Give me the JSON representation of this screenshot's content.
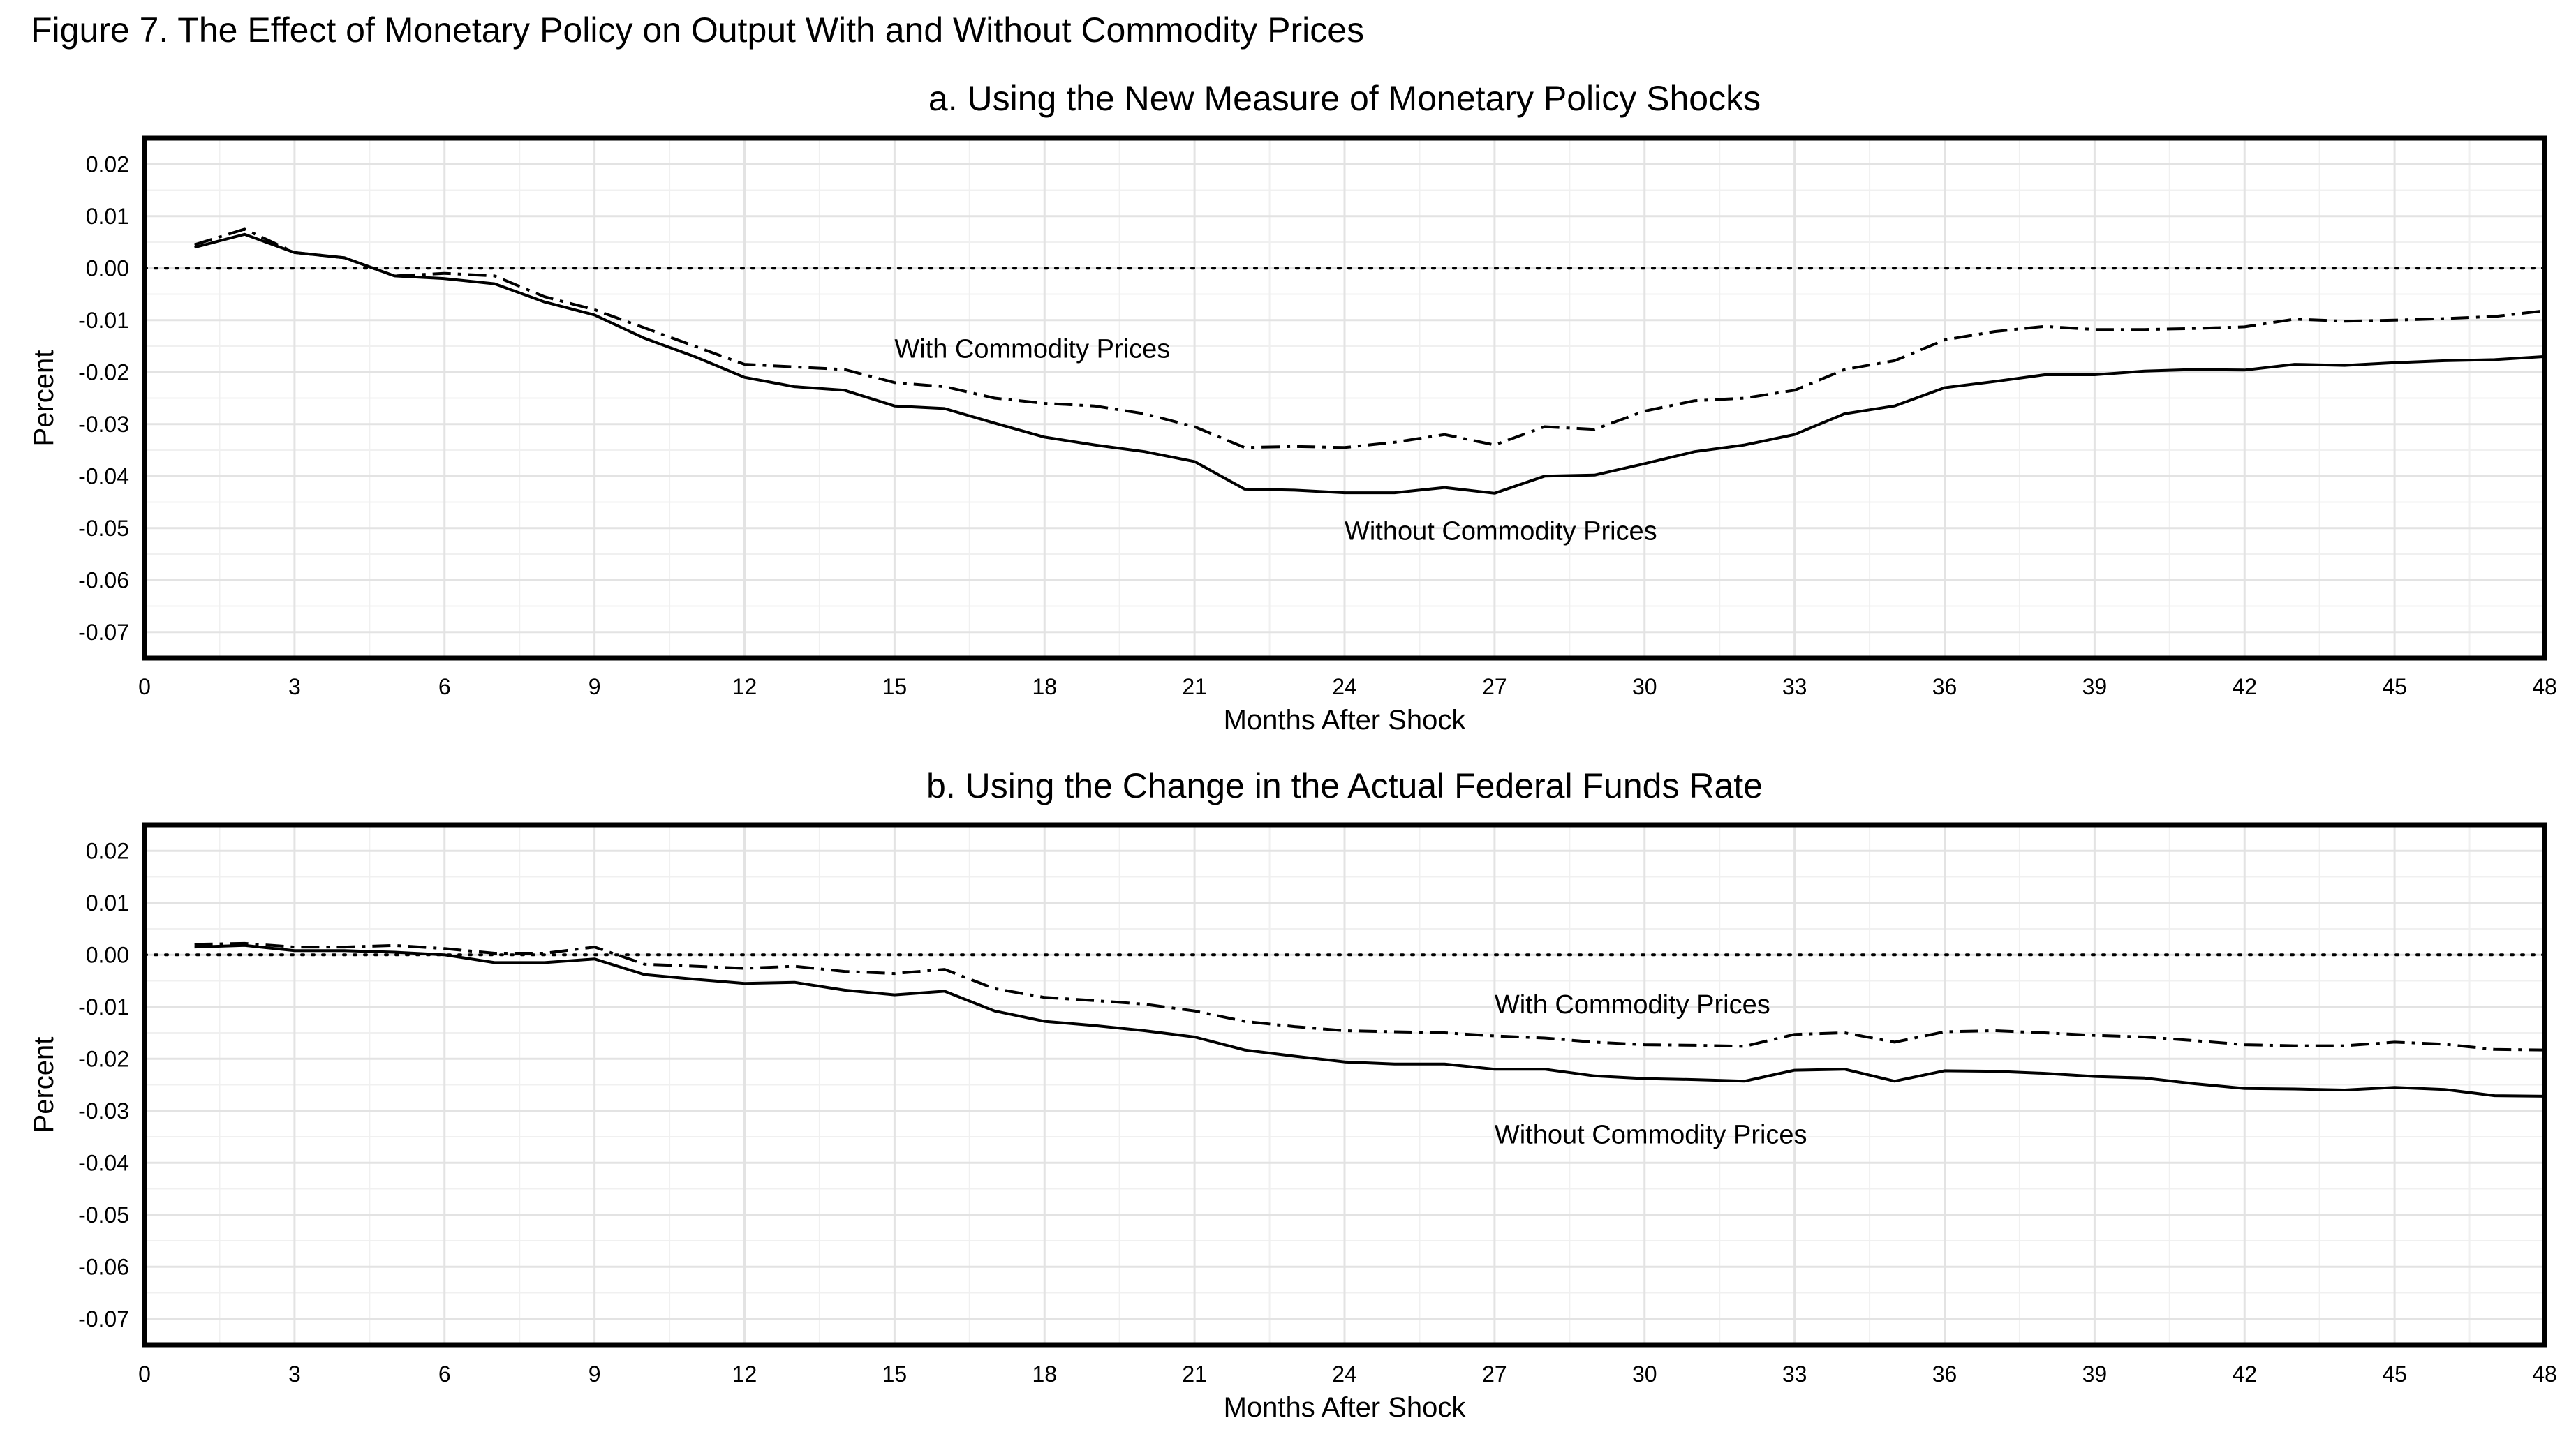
{
  "figure_title": "Figure 7. The Effect of Monetary Policy on Output With and Without Commodity Prices",
  "chart_data": [
    {
      "type": "line",
      "title": "a. Using the New Measure of Monetary Policy Shocks",
      "xlabel": "Months After Shock",
      "ylabel": "Percent",
      "xlim": [
        0,
        48
      ],
      "ylim": [
        -0.075,
        0.025
      ],
      "xticks": [
        "0",
        "3",
        "6",
        "9",
        "12",
        "15",
        "18",
        "21",
        "24",
        "27",
        "30",
        "33",
        "36",
        "39",
        "42",
        "45",
        "48"
      ],
      "yticks": [
        "0.02",
        "0.01",
        "0.00",
        "-0.01",
        "-0.02",
        "-0.03",
        "-0.04",
        "-0.05",
        "-0.06",
        "-0.07"
      ],
      "reference_line_y": 0,
      "grid": true,
      "annotations": [
        {
          "text": "With Commodity Prices",
          "x": 15,
          "y": -0.0155
        },
        {
          "text": "Without Commodity Prices",
          "x": 24,
          "y": -0.0505
        }
      ],
      "series": [
        {
          "name": "With Commodity Prices",
          "x": [
            1,
            2,
            3,
            4,
            5,
            6,
            7,
            8,
            9,
            10,
            11,
            12,
            13,
            14,
            15,
            16,
            17,
            18,
            19,
            20,
            21,
            22,
            23,
            24,
            25,
            26,
            27,
            28,
            29,
            30,
            31,
            32,
            33,
            34,
            35,
            36,
            37,
            38,
            39,
            40,
            41,
            42,
            43,
            44,
            45,
            46,
            47,
            48
          ],
          "y": [
            0.0045,
            0.0075,
            0.003,
            0.002,
            -0.0015,
            -0.001,
            -0.0015,
            -0.0055,
            -0.008,
            -0.0115,
            -0.015,
            -0.0185,
            -0.019,
            -0.0195,
            -0.022,
            -0.0228,
            -0.025,
            -0.026,
            -0.0265,
            -0.028,
            -0.0305,
            -0.0345,
            -0.0343,
            -0.0345,
            -0.0335,
            -0.032,
            -0.034,
            -0.0305,
            -0.031,
            -0.0275,
            -0.0255,
            -0.025,
            -0.0235,
            -0.0195,
            -0.0178,
            -0.0138,
            -0.0122,
            -0.0112,
            -0.0118,
            -0.0118,
            -0.0116,
            -0.0113,
            -0.0098,
            -0.0102,
            -0.01,
            -0.0097,
            -0.0093,
            -0.0082
          ]
        },
        {
          "name": "Without Commodity Prices",
          "x": [
            1,
            2,
            3,
            4,
            5,
            6,
            7,
            8,
            9,
            10,
            11,
            12,
            13,
            14,
            15,
            16,
            17,
            18,
            19,
            20,
            21,
            22,
            23,
            24,
            25,
            26,
            27,
            28,
            29,
            30,
            31,
            32,
            33,
            34,
            35,
            36,
            37,
            38,
            39,
            40,
            41,
            42,
            43,
            44,
            45,
            46,
            47,
            48
          ],
          "y": [
            0.004,
            0.0065,
            0.003,
            0.002,
            -0.0015,
            -0.002,
            -0.003,
            -0.0065,
            -0.009,
            -0.0135,
            -0.017,
            -0.021,
            -0.0228,
            -0.0235,
            -0.0265,
            -0.027,
            -0.0298,
            -0.0325,
            -0.034,
            -0.0353,
            -0.0372,
            -0.0425,
            -0.0427,
            -0.0432,
            -0.0432,
            -0.0422,
            -0.0433,
            -0.04,
            -0.0398,
            -0.0376,
            -0.0353,
            -0.034,
            -0.032,
            -0.028,
            -0.0265,
            -0.023,
            -0.0218,
            -0.0205,
            -0.0205,
            -0.0198,
            -0.0195,
            -0.0196,
            -0.0185,
            -0.0187,
            -0.0182,
            -0.0178,
            -0.0176,
            -0.017
          ]
        }
      ]
    },
    {
      "type": "line",
      "title": "b. Using the Change in the Actual Federal Funds Rate",
      "xlabel": "Months After Shock",
      "ylabel": "Percent",
      "xlim": [
        0,
        48
      ],
      "ylim": [
        -0.075,
        0.025
      ],
      "xticks": [
        "0",
        "3",
        "6",
        "9",
        "12",
        "15",
        "18",
        "21",
        "24",
        "27",
        "30",
        "33",
        "36",
        "39",
        "42",
        "45",
        "48"
      ],
      "yticks": [
        "0.02",
        "0.01",
        "0.00",
        "-0.01",
        "-0.02",
        "-0.03",
        "-0.04",
        "-0.05",
        "-0.06",
        "-0.07"
      ],
      "reference_line_y": 0,
      "grid": true,
      "annotations": [
        {
          "text": "With Commodity Prices",
          "x": 27,
          "y": -0.0095
        },
        {
          "text": "Without Commodity Prices",
          "x": 27,
          "y": -0.0345
        }
      ],
      "series": [
        {
          "name": "With Commodity Prices",
          "x": [
            1,
            2,
            3,
            4,
            5,
            6,
            7,
            8,
            9,
            10,
            11,
            12,
            13,
            14,
            15,
            16,
            17,
            18,
            19,
            20,
            21,
            22,
            23,
            24,
            25,
            26,
            27,
            28,
            29,
            30,
            31,
            32,
            33,
            34,
            35,
            36,
            37,
            38,
            39,
            40,
            41,
            42,
            43,
            44,
            45,
            46,
            47,
            48
          ],
          "y": [
            0.002,
            0.0022,
            0.0015,
            0.0015,
            0.0018,
            0.0012,
            0.0003,
            0.0003,
            0.0015,
            -0.0018,
            -0.0022,
            -0.0026,
            -0.0022,
            -0.0032,
            -0.0036,
            -0.0028,
            -0.0065,
            -0.0082,
            -0.0088,
            -0.0095,
            -0.0108,
            -0.0128,
            -0.0138,
            -0.0146,
            -0.0148,
            -0.015,
            -0.0156,
            -0.016,
            -0.0168,
            -0.0173,
            -0.0174,
            -0.0176,
            -0.0153,
            -0.015,
            -0.0168,
            -0.0148,
            -0.0146,
            -0.015,
            -0.0155,
            -0.0158,
            -0.0165,
            -0.0173,
            -0.0175,
            -0.0175,
            -0.0168,
            -0.0172,
            -0.0182,
            -0.0183
          ]
        },
        {
          "name": "Without Commodity Prices",
          "x": [
            1,
            2,
            3,
            4,
            5,
            6,
            7,
            8,
            9,
            10,
            11,
            12,
            13,
            14,
            15,
            16,
            17,
            18,
            19,
            20,
            21,
            22,
            23,
            24,
            25,
            26,
            27,
            28,
            29,
            30,
            31,
            32,
            33,
            34,
            35,
            36,
            37,
            38,
            39,
            40,
            41,
            42,
            43,
            44,
            45,
            46,
            47,
            48
          ],
          "y": [
            0.0015,
            0.0018,
            0.0008,
            0.0008,
            0.0005,
            0.0,
            -0.0015,
            -0.0015,
            -0.0008,
            -0.0038,
            -0.0047,
            -0.0055,
            -0.0053,
            -0.0068,
            -0.0077,
            -0.007,
            -0.0108,
            -0.0128,
            -0.0136,
            -0.0146,
            -0.0158,
            -0.0183,
            -0.0195,
            -0.0206,
            -0.021,
            -0.021,
            -0.022,
            -0.022,
            -0.0233,
            -0.0238,
            -0.024,
            -0.0243,
            -0.0222,
            -0.022,
            -0.0243,
            -0.0223,
            -0.0224,
            -0.0228,
            -0.0234,
            -0.0237,
            -0.0248,
            -0.0257,
            -0.0258,
            -0.026,
            -0.0255,
            -0.0259,
            -0.0271,
            -0.0272
          ]
        }
      ]
    }
  ]
}
